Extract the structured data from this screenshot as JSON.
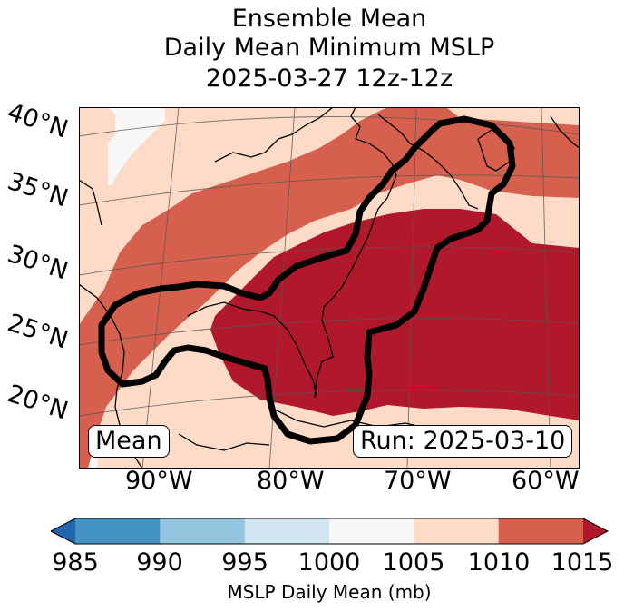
{
  "title": {
    "line1": "Ensemble Mean",
    "line2": "Daily Mean Minimum MSLP",
    "line3": "2025-03-27 12z-12z"
  },
  "map": {
    "lat_labels": [
      "40°N",
      "35°N",
      "30°N",
      "25°N",
      "20°N"
    ],
    "lon_labels": [
      "90°W",
      "80°W",
      "70°W",
      "60°W"
    ],
    "mean_badge": "Mean",
    "run_badge": "Run: 2025-03-10"
  },
  "chart_data": {
    "type": "heatmap",
    "title": "Ensemble Mean Daily Mean Minimum MSLP 2025-03-27 12z-12z",
    "variable": "MSLP Daily Mean (mb)",
    "bounds": [
      985,
      990,
      995,
      1000,
      1005,
      1010,
      1015
    ],
    "colors": [
      "#4393c3",
      "#92c5de",
      "#d1e5f0",
      "#f7f7f7",
      "#fddbc7",
      "#d6604d",
      "#b2182b"
    ],
    "extend_low_color": "#2166ac",
    "extend_high_color": "#b2182b",
    "lon_range": [
      -97,
      -58
    ],
    "lat_range": [
      15,
      41
    ],
    "contour_color": "#000000"
  },
  "colorbar": {
    "ticks": [
      "985",
      "990",
      "995",
      "1000",
      "1005",
      "1010",
      "1015"
    ],
    "label": "MSLP Daily Mean (mb)"
  }
}
